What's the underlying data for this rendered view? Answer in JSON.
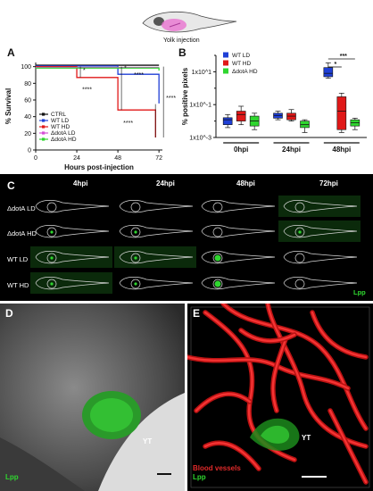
{
  "header": {
    "caption": "Yolk injection"
  },
  "panels": {
    "a": "A",
    "b": "B",
    "c": "C",
    "d": "D",
    "e": "E"
  },
  "panelA": {
    "xlabel": "Hours post-injection",
    "ylabel": "% Survival",
    "legend": [
      {
        "name": "CTRL",
        "color": "#111111"
      },
      {
        "name": "WT LD",
        "color": "#1f3fd6"
      },
      {
        "name": "WT HD",
        "color": "#e01818"
      },
      {
        "name": "ΔdotA LD",
        "color": "#d64fd6"
      },
      {
        "name": "ΔdotA HD",
        "color": "#2fd62f"
      }
    ],
    "sig": [
      "*",
      "*",
      "****",
      "****",
      "****",
      "****"
    ]
  },
  "panelC": {
    "col_headers": [
      "4hpi",
      "24hpi",
      "48hpi",
      "72hpi"
    ],
    "row_labels": [
      "ΔdotA LD",
      "ΔdotA HD",
      "WT LD",
      "WT HD"
    ],
    "stain": "Lpp"
  },
  "panelD": {
    "yt_label": "YT",
    "stain": "Lpp"
  },
  "panelE": {
    "yt_label": "YT",
    "vessels": "Blood vessels",
    "stain": "Lpp"
  },
  "chart_data": [
    {
      "type": "line",
      "title": "",
      "xlabel": "Hours post-injection",
      "ylabel": "% Survival",
      "x": [
        0,
        24,
        48,
        72
      ],
      "xlim": [
        0,
        74
      ],
      "ylim": [
        0,
        105
      ],
      "xticks": [
        0,
        24,
        48,
        72
      ],
      "yticks": [
        0,
        20,
        40,
        60,
        80,
        100
      ],
      "series": [
        {
          "name": "CTRL",
          "color": "#111111",
          "steps": [
            [
              0,
              100
            ],
            [
              72,
              100
            ]
          ]
        },
        {
          "name": "WT LD",
          "color": "#1f3fd6",
          "steps": [
            [
              0,
              100
            ],
            [
              48,
              100
            ],
            [
              48,
              90
            ],
            [
              72,
              90
            ],
            [
              72,
              55
            ]
          ]
        },
        {
          "name": "WT HD",
          "color": "#e01818",
          "steps": [
            [
              0,
              100
            ],
            [
              24,
              100
            ],
            [
              24,
              87
            ],
            [
              48,
              87
            ],
            [
              48,
              48
            ],
            [
              70,
              48
            ],
            [
              70,
              15
            ]
          ]
        },
        {
          "name": "ΔdotA LD",
          "color": "#d64fd6",
          "steps": [
            [
              0,
              100
            ],
            [
              72,
              100
            ]
          ]
        },
        {
          "name": "ΔdotA HD",
          "color": "#2fd62f",
          "steps": [
            [
              0,
              100
            ],
            [
              72,
              100
            ],
            [
              72,
              97
            ]
          ]
        }
      ],
      "legend": "bottom-left"
    },
    {
      "type": "box",
      "title": "",
      "xlabel": "",
      "ylabel": "% positive pixels",
      "categories": [
        "0hpi",
        "24hpi",
        "48hpi"
      ],
      "yscale": "log",
      "ylim": [
        0.001,
        100
      ],
      "yticks": [
        "1x10^-3",
        "1x10^-1",
        "1x10^1"
      ],
      "series": [
        {
          "name": "WT LD",
          "color": "#1f3fd6",
          "boxes": [
            {
              "min": 0.004,
              "q1": 0.006,
              "median": 0.012,
              "q3": 0.016,
              "max": 0.025
            },
            {
              "min": 0.012,
              "q1": 0.015,
              "median": 0.022,
              "q3": 0.03,
              "max": 0.04
            },
            {
              "min": 4,
              "q1": 5,
              "median": 8,
              "q3": 18,
              "max": 35
            }
          ]
        },
        {
          "name": "WT HD",
          "color": "#e01818",
          "boxes": [
            {
              "min": 0.006,
              "q1": 0.01,
              "median": 0.025,
              "q3": 0.04,
              "max": 0.08
            },
            {
              "min": 0.01,
              "q1": 0.012,
              "median": 0.02,
              "q3": 0.03,
              "max": 0.05
            },
            {
              "min": 0.002,
              "q1": 0.003,
              "median": 0.04,
              "q3": 0.3,
              "max": 0.5
            }
          ]
        },
        {
          "name": "ΔdotA HD",
          "color": "#2fd62f",
          "boxes": [
            {
              "min": 0.003,
              "q1": 0.005,
              "median": 0.01,
              "q3": 0.02,
              "max": 0.03
            },
            {
              "min": 0.002,
              "q1": 0.004,
              "median": 0.006,
              "q3": 0.01,
              "max": 0.012
            },
            {
              "min": 0.003,
              "q1": 0.005,
              "median": 0.008,
              "q3": 0.012,
              "max": 0.015
            }
          ]
        }
      ],
      "sig": [
        "*",
        "***"
      ],
      "legend": "top-left"
    }
  ]
}
